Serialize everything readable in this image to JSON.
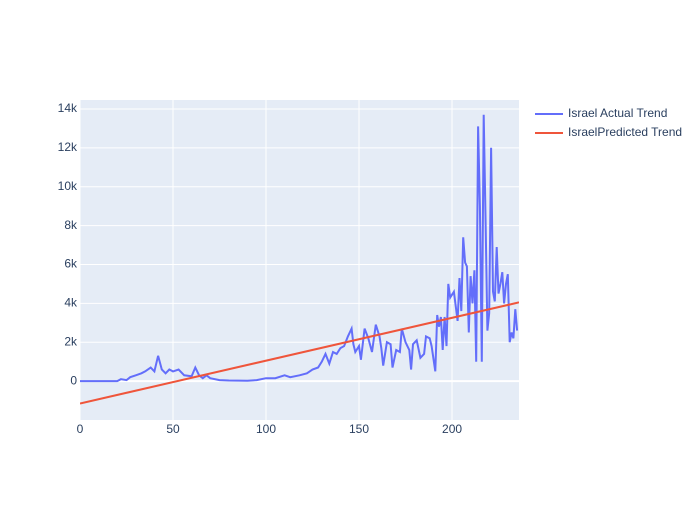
{
  "chart_data": {
    "type": "line",
    "x": [
      0,
      10,
      20,
      22,
      25,
      27,
      30,
      33,
      35,
      38,
      40,
      42,
      44,
      46,
      48,
      50,
      53,
      56,
      60,
      62,
      64,
      66,
      68,
      70,
      75,
      80,
      90,
      95,
      100,
      105,
      110,
      113,
      118,
      122,
      125,
      128,
      130,
      132,
      134,
      136,
      138,
      140,
      142,
      144,
      146,
      147,
      148,
      150,
      151,
      153,
      155,
      157,
      159,
      161,
      162,
      163,
      165,
      167,
      168,
      170,
      172,
      173,
      175,
      177,
      178,
      179,
      181,
      183,
      185,
      186,
      188,
      189,
      191,
      192,
      193,
      194,
      195,
      196,
      197,
      198,
      199,
      201,
      203,
      204,
      205,
      206,
      207,
      208,
      209,
      210,
      211,
      212,
      213,
      214,
      215,
      216,
      217,
      218,
      219,
      220,
      221,
      222,
      223,
      224,
      225,
      226,
      227,
      228,
      229,
      230,
      231,
      232,
      233,
      234,
      235
    ],
    "series": [
      {
        "name": "Israel Actual Trend",
        "color": "#636efa",
        "values": [
          0,
          0,
          0,
          100,
          50,
          200,
          300,
          400,
          500,
          700,
          500,
          1300,
          600,
          400,
          600,
          500,
          600,
          300,
          250,
          700,
          300,
          150,
          300,
          150,
          50,
          30,
          20,
          50,
          150,
          150,
          300,
          200,
          300,
          400,
          600,
          700,
          1000,
          1400,
          900,
          1500,
          1400,
          1700,
          1800,
          2300,
          2700,
          1900,
          1500,
          1800,
          1100,
          2700,
          2200,
          1500,
          2900,
          2300,
          1700,
          800,
          2000,
          1900,
          700,
          1600,
          1500,
          2700,
          2000,
          1600,
          600,
          1900,
          2100,
          1200,
          1400,
          2300,
          2200,
          1800,
          500,
          3400,
          2800,
          3300,
          1600,
          3300,
          1800,
          5000,
          4300,
          4600,
          3100,
          5300,
          3600,
          7400,
          6100,
          5900,
          2500,
          5400,
          4000,
          5700,
          1000,
          13100,
          9000,
          1000,
          13700,
          8500,
          2600,
          3500,
          12000,
          4600,
          4100,
          6900,
          4500,
          5000,
          5600,
          4000,
          5000,
          5500,
          2000,
          2500,
          2200,
          3700,
          2600
        ]
      },
      {
        "name": "IsraelPredicted Trend",
        "color": "#ef553b",
        "x": [
          0,
          236
        ],
        "values": [
          -1150,
          4050
        ]
      }
    ],
    "xlim": [
      0,
      236
    ],
    "xticks": [
      0,
      50,
      100,
      150,
      200
    ],
    "ylim": [
      -2000,
      14460
    ],
    "yticks": [
      0,
      {
        "value": 2000,
        "label": "2k"
      },
      {
        "value": 4000,
        "label": "4k"
      },
      {
        "value": 6000,
        "label": "6k"
      },
      {
        "value": 8000,
        "label": "8k"
      },
      {
        "value": 10000,
        "label": "10k"
      },
      {
        "value": 12000,
        "label": "12k"
      },
      {
        "value": 14000,
        "label": "14k"
      }
    ],
    "grid": true,
    "legend": "right"
  }
}
